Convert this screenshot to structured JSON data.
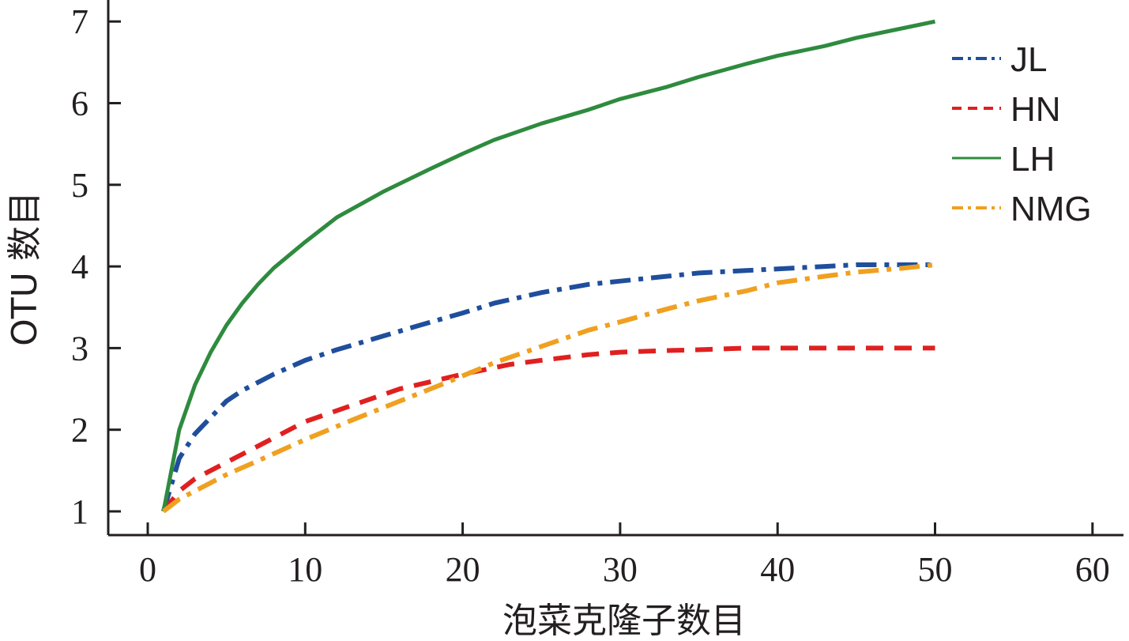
{
  "chart_data": {
    "type": "line",
    "xlabel": "泡菜克隆子数目",
    "ylabel": "OTU 数目",
    "xlim": [
      0,
      60
    ],
    "ylim": [
      1,
      7
    ],
    "x_ticks": [
      0,
      10,
      20,
      30,
      40,
      50,
      60
    ],
    "y_ticks": [
      1,
      2,
      3,
      4,
      5,
      6,
      7
    ],
    "grid": false,
    "legend": "top-right",
    "series": [
      {
        "name": "JL",
        "color": "#1f4e9c",
        "dash": "dash-dot",
        "x": [
          1,
          2,
          3,
          4,
          5,
          6,
          7,
          8,
          10,
          12,
          15,
          18,
          20,
          22,
          25,
          28,
          30,
          33,
          35,
          38,
          40,
          43,
          45,
          48,
          50
        ],
        "y": [
          1.0,
          1.65,
          1.95,
          2.15,
          2.35,
          2.48,
          2.58,
          2.68,
          2.85,
          2.98,
          3.15,
          3.32,
          3.43,
          3.55,
          3.68,
          3.78,
          3.82,
          3.88,
          3.92,
          3.95,
          3.97,
          4.0,
          4.02,
          4.02,
          4.02
        ]
      },
      {
        "name": "HN",
        "color": "#e02020",
        "dash": "dashed",
        "x": [
          1,
          2,
          3,
          5,
          7,
          10,
          13,
          16,
          20,
          23,
          25,
          28,
          30,
          33,
          35,
          38,
          40,
          45,
          50
        ],
        "y": [
          1.0,
          1.25,
          1.4,
          1.6,
          1.8,
          2.1,
          2.3,
          2.5,
          2.68,
          2.8,
          2.85,
          2.92,
          2.95,
          2.97,
          2.98,
          3.0,
          3.0,
          3.0,
          3.0
        ]
      },
      {
        "name": "LH",
        "color": "#2e8b3e",
        "dash": "solid",
        "x": [
          1,
          2,
          3,
          4,
          5,
          6,
          7,
          8,
          10,
          12,
          15,
          18,
          20,
          22,
          25,
          28,
          30,
          33,
          35,
          38,
          40,
          43,
          45,
          48,
          50
        ],
        "y": [
          1.0,
          2.0,
          2.55,
          2.95,
          3.28,
          3.55,
          3.78,
          3.98,
          4.3,
          4.6,
          4.92,
          5.2,
          5.38,
          5.55,
          5.75,
          5.92,
          6.05,
          6.2,
          6.32,
          6.48,
          6.58,
          6.7,
          6.8,
          6.92,
          7.0
        ]
      },
      {
        "name": "NMG",
        "color": "#f0a020",
        "dash": "dash-dot",
        "x": [
          1,
          2,
          3,
          5,
          7,
          10,
          13,
          16,
          19,
          22,
          25,
          28,
          30,
          33,
          35,
          38,
          40,
          43,
          45,
          48,
          50
        ],
        "y": [
          1.0,
          1.15,
          1.25,
          1.45,
          1.62,
          1.88,
          2.12,
          2.35,
          2.58,
          2.82,
          3.02,
          3.22,
          3.32,
          3.48,
          3.58,
          3.7,
          3.8,
          3.88,
          3.93,
          3.98,
          4.02
        ]
      }
    ]
  }
}
